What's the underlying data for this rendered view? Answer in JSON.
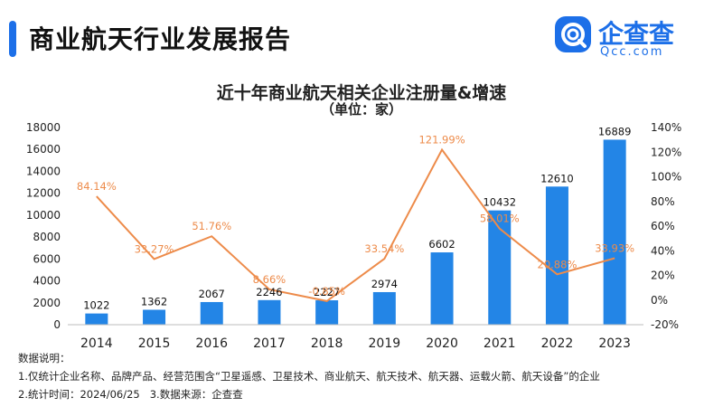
{
  "header": {
    "title": "商业航天行业发展报告"
  },
  "logo": {
    "name": "企查查",
    "domain": "Qcc.com",
    "icon": "qcc-logo-icon",
    "color": "#1c6fe8"
  },
  "chart_data": {
    "type": "bar",
    "title": "近十年商业航天相关企业注册量&增速",
    "subtitle": "（单位：家）",
    "categories": [
      "2014",
      "2015",
      "2016",
      "2017",
      "2018",
      "2019",
      "2020",
      "2021",
      "2022",
      "2023"
    ],
    "series": [
      {
        "values": [
          1022,
          1362,
          2067,
          2246,
          2227,
          2974,
          6602,
          10432,
          12610,
          16889
        ],
        "value_labels": [
          "1022",
          "1362",
          "2067",
          "2246",
          "2227",
          "2974",
          "6602",
          "10432",
          "12610",
          "16889"
        ],
        "axis": "left",
        "mark": "bar",
        "color": "#2385e6"
      },
      {
        "values": [
          84.14,
          33.27,
          51.76,
          8.66,
          -0.85,
          33.54,
          121.99,
          58.01,
          20.88,
          33.93
        ],
        "value_labels": [
          "84.14%",
          "33.27%",
          "51.76%",
          "8.66%",
          "-0.85%",
          "33.54%",
          "121.99%",
          "58.01%",
          "20.88%",
          "33.93%"
        ],
        "axis": "right",
        "mark": "line",
        "color": "#ed8b4a"
      }
    ],
    "ylim_left": [
      0,
      18000
    ],
    "yticks_left": [
      "0",
      "2000",
      "4000",
      "6000",
      "8000",
      "10000",
      "12000",
      "14000",
      "16000",
      "18000"
    ],
    "ylim_right": [
      -20,
      140
    ],
    "yticks_right": [
      "-20%",
      "0%",
      "20%",
      "40%",
      "60%",
      "80%",
      "100%",
      "120%",
      "140%"
    ],
    "grid": false
  },
  "notes": {
    "heading": "数据说明：",
    "line1": "1.仅统计企业名称、品牌产品、经营范围含“卫星遥感、卫星技术、商业航天、航天技术、航天器、运载火箭、航天设备”的企业",
    "line2": "2.统计时间：2024/06/25   3.数据来源：企查查"
  }
}
